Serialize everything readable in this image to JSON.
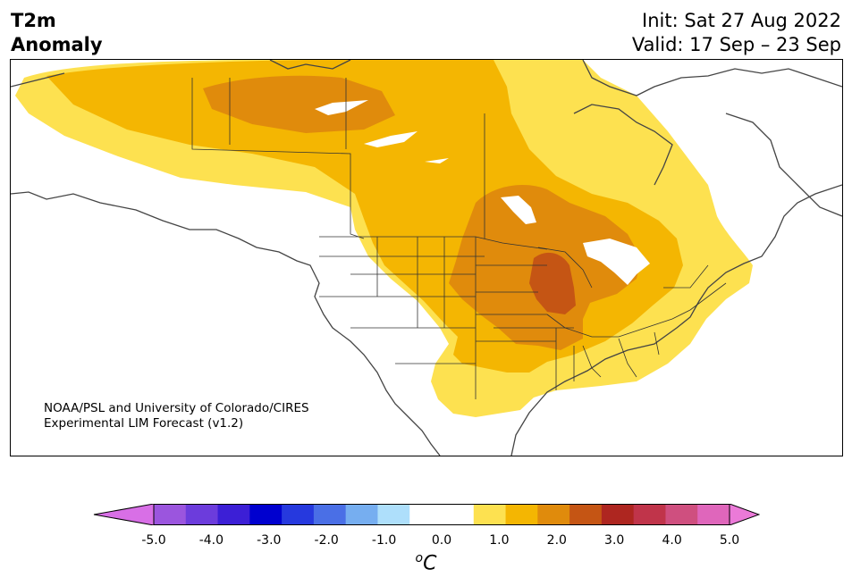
{
  "title": {
    "variable": "T2m",
    "subtitle": "Anomaly",
    "init": "Init: Sat 27 Aug 2022",
    "valid": "Valid: 17 Sep – 23 Sep"
  },
  "credit": {
    "line1": "NOAA/PSL and University of Colorado/CIRES",
    "line2": "Experimental LIM Forecast (v1.2)"
  },
  "colorbar": {
    "unit": "C",
    "unit_prefix": "o",
    "tick_labels": [
      "-5.0",
      "-4.0",
      "-3.0",
      "-2.0",
      "-1.0",
      "0.0",
      "1.0",
      "2.0",
      "3.0",
      "4.0",
      "5.0"
    ],
    "colors": [
      "#d86fe6",
      "#9b55de",
      "#6c3cdc",
      "#3c1fd6",
      "#0000cf",
      "#2639de",
      "#4a6fe6",
      "#76aef0",
      "#aedffb",
      "#ffffff",
      "#ffffff",
      "#fde150",
      "#f4b602",
      "#e08b0c",
      "#c55514",
      "#ae2620",
      "#c0344a",
      "#cf4f7f",
      "#df66bb",
      "#eb7ad8"
    ]
  },
  "map": {
    "region": "North America",
    "anomaly_levels": {
      "level_0_5_to_1_0": "#fde150",
      "level_1_0_to_1_5": "#f4b602",
      "level_1_5_to_2_0": "#e08b0c",
      "level_2_0_to_2_5": "#c55514"
    },
    "outline_color": "#444444"
  }
}
